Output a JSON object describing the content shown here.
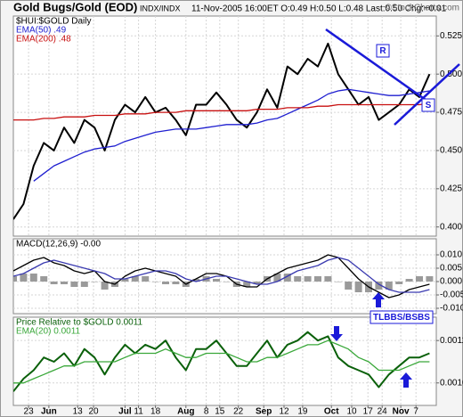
{
  "chart_data": [
    {
      "type": "line",
      "title": "Gold Bugs/Gold (EOD)",
      "subtitle": "INDX/INDX",
      "info": "11-Nov-2005 16:00ET O:0.49 H:0.50 L:0.48 Last:0.50 Chg:+0.01",
      "credit": "©StockCharts.com",
      "annotations": [
        "R",
        "S"
      ],
      "x": [
        0,
        3,
        6,
        9,
        12,
        15,
        18,
        21,
        24,
        27,
        30,
        33,
        36,
        39,
        42,
        45,
        48,
        51,
        54,
        57,
        60,
        63,
        66,
        69,
        72,
        75,
        78,
        81,
        84,
        87,
        90,
        93,
        96,
        99,
        102,
        105,
        108,
        111,
        114,
        117,
        120,
        123
      ],
      "xlim": [
        0,
        125
      ],
      "ylim": [
        0.394,
        0.538
      ],
      "yticks": [
        {
          "value": 0.4,
          "label": "0.400"
        },
        {
          "value": 0.425,
          "label": "0.425"
        },
        {
          "value": 0.45,
          "label": "0.450"
        },
        {
          "value": 0.475,
          "label": "0.475"
        },
        {
          "value": 0.5,
          "label": "0.500"
        },
        {
          "value": 0.525,
          "label": "0.525"
        }
      ],
      "grid": true,
      "series": [
        {
          "name": "$HUI:$GOLD Daily",
          "color": "#000000",
          "values": [
            0.405,
            0.415,
            0.44,
            0.455,
            0.45,
            0.465,
            0.455,
            0.47,
            0.465,
            0.45,
            0.47,
            0.48,
            0.475,
            0.485,
            0.475,
            0.478,
            0.47,
            0.46,
            0.48,
            0.48,
            0.488,
            0.48,
            0.47,
            0.465,
            0.475,
            0.49,
            0.478,
            0.505,
            0.5,
            0.51,
            0.505,
            0.52,
            0.5,
            0.49,
            0.48,
            0.485,
            0.47,
            0.475,
            0.48,
            0.49,
            0.485,
            0.5
          ]
        },
        {
          "name": "EMA(50) .49",
          "color": "#1f1fd0",
          "values": [
            null,
            null,
            0.43,
            0.435,
            0.44,
            0.443,
            0.446,
            0.449,
            0.451,
            0.452,
            0.453,
            0.456,
            0.458,
            0.46,
            0.462,
            0.463,
            0.464,
            0.464,
            0.464,
            0.465,
            0.466,
            0.467,
            0.467,
            0.467,
            0.468,
            0.47,
            0.471,
            0.474,
            0.477,
            0.48,
            0.483,
            0.487,
            0.489,
            0.49,
            0.489,
            0.488,
            0.487,
            0.486,
            0.486,
            0.487,
            0.488,
            0.489
          ]
        },
        {
          "name": "EMA(200) .48",
          "color": "#c81010",
          "values": [
            0.47,
            0.47,
            0.47,
            0.471,
            0.471,
            0.472,
            0.472,
            0.472,
            0.473,
            0.473,
            0.473,
            0.474,
            0.474,
            0.474,
            0.475,
            0.475,
            0.475,
            0.476,
            0.476,
            0.476,
            0.476,
            0.476,
            0.476,
            0.476,
            0.477,
            0.477,
            0.477,
            0.478,
            0.478,
            0.478,
            0.479,
            0.479,
            0.48,
            0.48,
            0.48,
            0.48,
            0.48,
            0.48,
            0.48,
            0.48,
            0.48,
            0.481
          ]
        }
      ]
    },
    {
      "type": "line",
      "annotations": [
        "TLBBS/BSBS"
      ],
      "x": [
        0,
        3,
        6,
        9,
        12,
        15,
        18,
        21,
        24,
        27,
        30,
        33,
        36,
        39,
        42,
        45,
        48,
        51,
        54,
        57,
        60,
        63,
        66,
        69,
        72,
        75,
        78,
        81,
        84,
        87,
        90,
        93,
        96,
        99,
        102,
        105,
        108,
        111,
        114,
        117,
        120,
        123
      ],
      "xlim": [
        0,
        125
      ],
      "ylim": [
        -0.012,
        0.016
      ],
      "yticks": [
        {
          "value": 0.01,
          "label": "0.010"
        },
        {
          "value": 0.005,
          "label": "0.005"
        },
        {
          "value": 0,
          "label": "0.000"
        },
        {
          "value": -0.005,
          "label": "-0.005"
        },
        {
          "value": -0.01,
          "label": "-0.010"
        }
      ],
      "grid": true,
      "series": [
        {
          "type": "bar",
          "color": "#9a9a9a",
          "values": [
            0.002,
            0.003,
            0.003,
            0.002,
            -0.001,
            -0.001,
            -0.002,
            -0.002,
            0,
            -0.003,
            -0.002,
            0.001,
            0.002,
            0.002,
            0,
            -0.001,
            -0.001,
            -0.002,
            0.001,
            0.002,
            0.001,
            0,
            -0.002,
            -0.002,
            -0.001,
            0.002,
            0.003,
            0.003,
            0.002,
            0.002,
            0.002,
            0.002,
            0,
            -0.003,
            -0.004,
            -0.004,
            -0.003,
            -0.003,
            -0.001,
            0.001,
            0.002,
            0.002
          ]
        },
        {
          "name": "MACD(12,26,9) -0.00",
          "color": "#000000",
          "values": [
            0.004,
            0.006,
            0.008,
            0.009,
            0.007,
            0.006,
            0.004,
            0.003,
            0.004,
            0,
            -0.001,
            0.002,
            0.004,
            0.005,
            0.004,
            0.003,
            0.002,
            -0.001,
            0.001,
            0.003,
            0.003,
            0.002,
            -0.001,
            -0.002,
            -0.002,
            0.001,
            0.003,
            0.005,
            0.006,
            0.007,
            0.008,
            0.01,
            0.009,
            0.005,
            0.001,
            -0.002,
            -0.004,
            -0.006,
            -0.005,
            -0.003,
            -0.002,
            -0.001
          ]
        },
        {
          "color": "#3a3ab0",
          "values": [
            0.002,
            0.003,
            0.005,
            0.007,
            0.008,
            0.007,
            0.006,
            0.005,
            0.004,
            0.003,
            0.001,
            0.001,
            0.002,
            0.003,
            0.004,
            0.004,
            0.003,
            0.001,
            0,
            0.001,
            0.002,
            0.002,
            0.001,
            0,
            -0.001,
            -0.001,
            0,
            0.002,
            0.004,
            0.005,
            0.006,
            0.008,
            0.009,
            0.008,
            0.005,
            0.002,
            -0.001,
            -0.003,
            -0.004,
            -0.004,
            -0.004,
            -0.003
          ]
        }
      ]
    },
    {
      "type": "line",
      "x": [
        0,
        3,
        6,
        9,
        12,
        15,
        18,
        21,
        24,
        27,
        30,
        33,
        36,
        39,
        42,
        45,
        48,
        51,
        54,
        57,
        60,
        63,
        66,
        69,
        72,
        75,
        78,
        81,
        84,
        87,
        90,
        93,
        96,
        99,
        102,
        105,
        108,
        111,
        114,
        117,
        120,
        123
      ],
      "xlim": [
        0,
        125
      ],
      "ylim": [
        0.000947,
        0.001155
      ],
      "yticks": [
        {
          "value": 0.0011,
          "label": "0.0011"
        },
        {
          "value": 0.001,
          "label": "0.0010"
        }
      ],
      "xticks": [
        {
          "value": 4.5,
          "label": "23"
        },
        {
          "value": 10.5,
          "label": "Jun"
        },
        {
          "value": 19,
          "label": "13"
        },
        {
          "value": 23.7,
          "label": "20"
        },
        {
          "value": 33,
          "label": "Jul"
        },
        {
          "value": 37,
          "label": "11"
        },
        {
          "value": 42,
          "label": "18"
        },
        {
          "value": 51,
          "label": "Aug"
        },
        {
          "value": 57,
          "label": "8"
        },
        {
          "value": 61,
          "label": "15"
        },
        {
          "value": 66.5,
          "label": "22"
        },
        {
          "value": 74,
          "label": "Sep"
        },
        {
          "value": 80,
          "label": "12"
        },
        {
          "value": 85.5,
          "label": "19"
        },
        {
          "value": 94,
          "label": "Oct"
        },
        {
          "value": 100,
          "label": "10"
        },
        {
          "value": 104.8,
          "label": "17"
        },
        {
          "value": 109,
          "label": "24"
        },
        {
          "value": 114.5,
          "label": "Nov"
        },
        {
          "value": 119,
          "label": "7"
        }
      ],
      "grid": true,
      "series": [
        {
          "name": "Price Relative to $GOLD 0.0011",
          "color": "#0a600a",
          "values": [
            0.00098,
            0.00101,
            0.00103,
            0.00106,
            0.00105,
            0.00107,
            0.00104,
            0.00108,
            0.00106,
            0.00102,
            0.00106,
            0.00109,
            0.00107,
            0.00109,
            0.00108,
            0.0011,
            0.00106,
            0.00103,
            0.00108,
            0.00108,
            0.0011,
            0.00107,
            0.00104,
            0.00104,
            0.00107,
            0.0011,
            0.00106,
            0.00109,
            0.0011,
            0.00112,
            0.0011,
            0.00111,
            0.00106,
            0.00104,
            0.00103,
            0.00102,
            0.00099,
            0.00102,
            0.00104,
            0.00106,
            0.00106,
            0.00107
          ]
        },
        {
          "name": "EMA(20) 0.0011",
          "color": "#3aa83a",
          "values": [
            0.001,
            0.001,
            0.00101,
            0.00102,
            0.00103,
            0.00104,
            0.00104,
            0.00105,
            0.00105,
            0.00105,
            0.00105,
            0.00106,
            0.00107,
            0.00107,
            0.00107,
            0.00108,
            0.00107,
            0.00106,
            0.00106,
            0.00107,
            0.00107,
            0.00107,
            0.00106,
            0.00105,
            0.00105,
            0.00106,
            0.00106,
            0.00107,
            0.00108,
            0.00109,
            0.00109,
            0.0011,
            0.00109,
            0.00108,
            0.00106,
            0.00105,
            0.00103,
            0.00103,
            0.00103,
            0.00104,
            0.00105,
            0.00105
          ]
        }
      ]
    }
  ]
}
